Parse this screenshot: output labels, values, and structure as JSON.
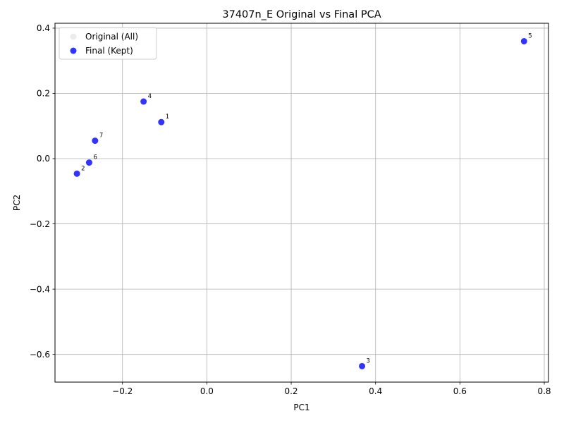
{
  "chart_data": {
    "type": "scatter",
    "title": "37407n_E Original vs Final PCA",
    "xlabel": "PC1",
    "ylabel": "PC2",
    "xlim": [
      -0.36,
      0.81
    ],
    "ylim": [
      -0.685,
      0.415
    ],
    "xticks": [
      -0.2,
      0.0,
      0.2,
      0.4,
      0.6,
      0.8
    ],
    "xtick_labels": [
      "−0.2",
      "0.0",
      "0.2",
      "0.4",
      "0.6",
      "0.8"
    ],
    "yticks": [
      -0.6,
      -0.4,
      -0.2,
      0.0,
      0.2,
      0.4
    ],
    "ytick_labels": [
      "−0.6",
      "−0.4",
      "−0.2",
      "0.0",
      "0.2",
      "0.4"
    ],
    "grid": true,
    "legend_position": "top-left",
    "series": [
      {
        "name": "Original (All)",
        "color": "#d9d9d9",
        "points": []
      },
      {
        "name": "Final (Kept)",
        "color": "#0000ff",
        "points": [
          {
            "label": "1",
            "x": -0.108,
            "y": 0.112
          },
          {
            "label": "2",
            "x": -0.308,
            "y": -0.046
          },
          {
            "label": "3",
            "x": 0.368,
            "y": -0.636
          },
          {
            "label": "4",
            "x": -0.15,
            "y": 0.175
          },
          {
            "label": "5",
            "x": 0.752,
            "y": 0.36
          },
          {
            "label": "6",
            "x": -0.279,
            "y": -0.012
          },
          {
            "label": "7",
            "x": -0.265,
            "y": 0.055
          }
        ]
      }
    ]
  }
}
